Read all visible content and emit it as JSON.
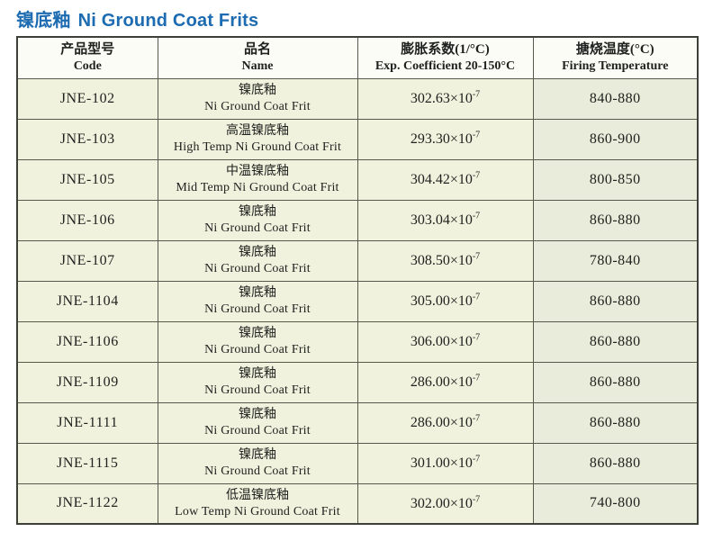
{
  "accent_blue": "#1d6bb1",
  "title": {
    "zh": "镍底釉",
    "en": "Ni Ground Coat Frits"
  },
  "table": {
    "headers": [
      {
        "zh": "产品型号",
        "en": "Code"
      },
      {
        "zh": "品名",
        "en": "Name"
      },
      {
        "zh": "膨胀系数(1/°C)",
        "en": "Exp. Coefficient 20-150°C"
      },
      {
        "zh": "搪烧温度(°C)",
        "en": "Firing Temperature"
      }
    ],
    "times_ten": "×10",
    "rows": [
      {
        "code": "JNE-102",
        "name_zh": "镍底釉",
        "name_en": "Ni Ground Coat Frit",
        "coef": "302.63",
        "coef_exp": "-7",
        "firing": "840-880"
      },
      {
        "code": "JNE-103",
        "name_zh": "高温镍底釉",
        "name_en": "High Temp Ni Ground Coat Frit",
        "coef": "293.30",
        "coef_exp": "-7",
        "firing": "860-900"
      },
      {
        "code": "JNE-105",
        "name_zh": "中温镍底釉",
        "name_en": "Mid Temp Ni Ground Coat Frit",
        "coef": "304.42",
        "coef_exp": "-7",
        "firing": "800-850"
      },
      {
        "code": "JNE-106",
        "name_zh": "镍底釉",
        "name_en": "Ni Ground Coat Frit",
        "coef": "303.04",
        "coef_exp": "-7",
        "firing": "860-880"
      },
      {
        "code": "JNE-107",
        "name_zh": "镍底釉",
        "name_en": "Ni Ground Coat Frit",
        "coef": "308.50",
        "coef_exp": "-7",
        "firing": "780-840"
      },
      {
        "code": "JNE-1104",
        "name_zh": "镍底釉",
        "name_en": "Ni Ground Coat Frit",
        "coef": "305.00",
        "coef_exp": "-7",
        "firing": "860-880"
      },
      {
        "code": "JNE-1106",
        "name_zh": "镍底釉",
        "name_en": "Ni Ground Coat Frit",
        "coef": "306.00",
        "coef_exp": "-7",
        "firing": "860-880"
      },
      {
        "code": "JNE-1109",
        "name_zh": "镍底釉",
        "name_en": "Ni Ground Coat Frit",
        "coef": "286.00",
        "coef_exp": "-7",
        "firing": "860-880"
      },
      {
        "code": "JNE-1111",
        "name_zh": "镍底釉",
        "name_en": "Ni Ground Coat Frit",
        "coef": "286.00",
        "coef_exp": "-7",
        "firing": "860-880"
      },
      {
        "code": "JNE-1115",
        "name_zh": "镍底釉",
        "name_en": "Ni Ground Coat Frit",
        "coef": "301.00",
        "coef_exp": "-7",
        "firing": "860-880"
      },
      {
        "code": "JNE-1122",
        "name_zh": "低温镍底釉",
        "name_en": "Low Temp Ni Ground Coat Frit",
        "coef": "302.00",
        "coef_exp": "-7",
        "firing": "740-800"
      }
    ]
  }
}
